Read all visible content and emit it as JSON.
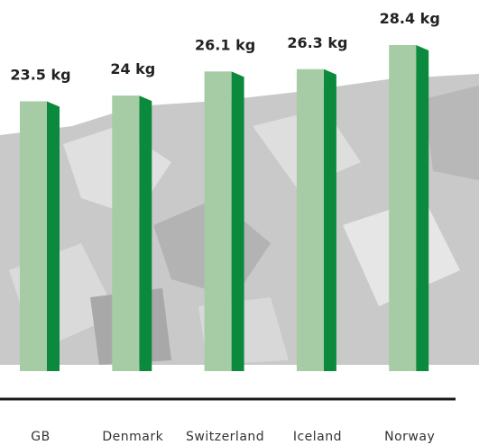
{
  "chart_data": {
    "type": "bar",
    "categories": [
      "GB",
      "Denmark",
      "Switzerland",
      "Iceland",
      "Norway"
    ],
    "values": [
      23.5,
      24,
      26.1,
      26.3,
      28.4
    ],
    "value_labels": [
      "23.5 kg",
      "24 kg",
      "26.1 kg",
      "26.3 kg",
      "28.4 kg"
    ],
    "color": "#a6cca6"
  }
}
